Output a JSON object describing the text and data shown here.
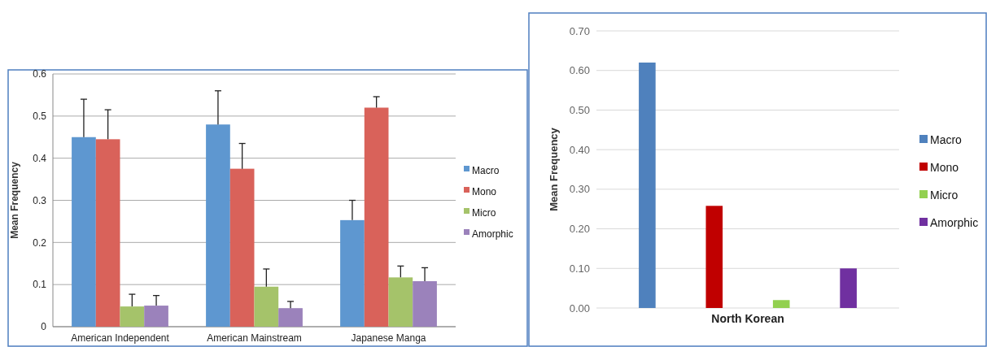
{
  "chart_data": [
    {
      "type": "bar",
      "ylabel": "Mean Frequency",
      "categories": [
        "American Independent",
        "American Mainstream",
        "Japanese Manga"
      ],
      "ylim": [
        0,
        0.6
      ],
      "yticks": [
        0,
        0.1,
        0.2,
        0.3,
        0.4,
        0.5,
        0.6
      ],
      "grid": "y",
      "legend": "right",
      "series": [
        {
          "name": "Macro",
          "color": "#5e97d0",
          "values": [
            0.45,
            0.48,
            0.253
          ],
          "errors": [
            [
              0.45,
              0.54
            ],
            [
              0.48,
              0.56
            ],
            [
              0.253,
              0.3
            ]
          ]
        },
        {
          "name": "Mono",
          "color": "#d9625a",
          "values": [
            0.445,
            0.375,
            0.52
          ],
          "errors": [
            [
              0.445,
              0.515
            ],
            [
              0.375,
              0.435
            ],
            [
              0.52,
              0.546
            ]
          ]
        },
        {
          "name": "Micro",
          "color": "#a5c36a",
          "values": [
            0.048,
            0.095,
            0.117
          ],
          "errors": [
            [
              0.048,
              0.077
            ],
            [
              0.095,
              0.137
            ],
            [
              0.117,
              0.144
            ]
          ]
        },
        {
          "name": "Amorphic",
          "color": "#9b82bb",
          "values": [
            0.05,
            0.044,
            0.108
          ],
          "errors": [
            [
              0.05,
              0.074
            ],
            [
              0.044,
              0.06
            ],
            [
              0.108,
              0.14
            ]
          ]
        }
      ]
    },
    {
      "type": "bar",
      "ylabel": "Mean Frequency",
      "categories": [
        "North Korean"
      ],
      "ylim": [
        0,
        0.7
      ],
      "yticks": [
        {
          "value": 0,
          "label": "0.00"
        },
        {
          "value": 0.1,
          "label": "0.10"
        },
        {
          "value": 0.2,
          "label": "0.20"
        },
        {
          "value": 0.3,
          "label": "0.30"
        },
        {
          "value": 0.4,
          "label": "0.40"
        },
        {
          "value": 0.5,
          "label": "0.50"
        },
        {
          "value": 0.6,
          "label": "0.60"
        },
        {
          "value": 0.7,
          "label": "0.70"
        }
      ],
      "grid": "y",
      "legend": "right",
      "series": [
        {
          "name": "Macro",
          "color": "#4f81bd",
          "values": [
            0.62
          ]
        },
        {
          "name": "Mono",
          "color": "#c00000",
          "values": [
            0.258
          ]
        },
        {
          "name": "Micro",
          "color": "#92d050",
          "values": [
            0.02
          ]
        },
        {
          "name": "Amorphic",
          "color": "#7030a0",
          "values": [
            0.1
          ]
        }
      ]
    }
  ]
}
